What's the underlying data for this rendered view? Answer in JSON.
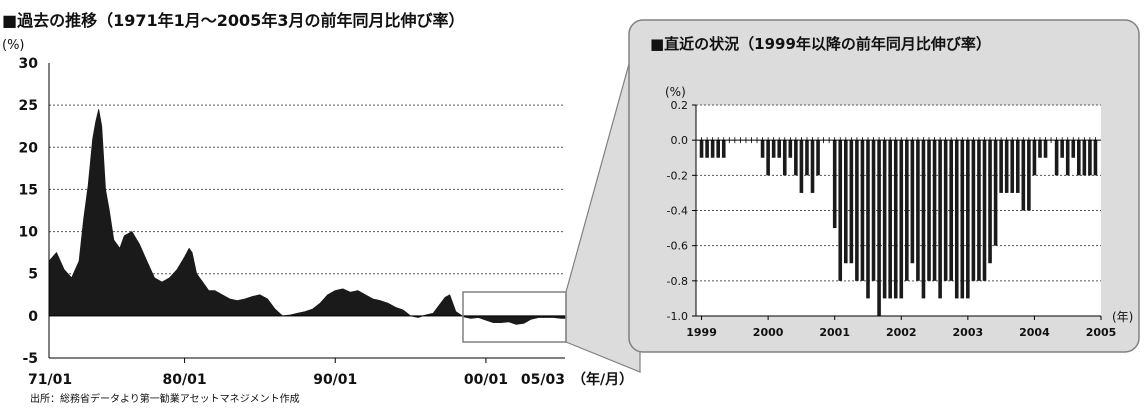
{
  "left_chart": {
    "title": "■過去の推移（1971年1月～2005年3月の前年同月比伸び率）",
    "unit": "(%)",
    "x_unit": "（年/月）",
    "source": "出所：総務省データより第一勧業アセットマネジメント作成"
  },
  "right_chart": {
    "title": "■直近の状況（1999年以降の前年同月比伸び率）",
    "unit": "(%)",
    "x_unit": "(年)"
  },
  "colors": {
    "bars": "#1a1a1a",
    "panel_fill": "#dcdcdc",
    "panel_border": "#808080",
    "axis": "#000000",
    "grid": "#555555"
  },
  "chart_data": [
    {
      "type": "area",
      "title": "過去の推移（1971年1月～2005年3月の前年同月比伸び率）",
      "ylabel": "(%)",
      "xlabel": "（年/月）",
      "ylim": [
        -5,
        30
      ],
      "yticks": [
        -5,
        0,
        5,
        10,
        15,
        20,
        25,
        30
      ],
      "xtick_labels": [
        "71/01",
        "80/01",
        "90/01",
        "00/01",
        "05/03"
      ],
      "x_range": [
        1971.0,
        2005.25
      ],
      "grid": "horizontal dotted",
      "x": [
        1971.0,
        1971.5,
        1972.0,
        1972.5,
        1973.0,
        1973.3,
        1973.6,
        1973.9,
        1974.1,
        1974.3,
        1974.5,
        1974.75,
        1975.0,
        1975.3,
        1975.7,
        1976.0,
        1976.5,
        1977.0,
        1977.5,
        1978.0,
        1978.5,
        1979.0,
        1979.5,
        1980.0,
        1980.3,
        1980.5,
        1980.8,
        1981.2,
        1981.6,
        1982.0,
        1982.5,
        1983.0,
        1983.5,
        1984.0,
        1984.5,
        1985.0,
        1985.5,
        1986.0,
        1986.5,
        1987.0,
        1987.5,
        1988.0,
        1988.5,
        1989.0,
        1989.5,
        1990.0,
        1990.5,
        1991.0,
        1991.5,
        1992.0,
        1992.5,
        1993.0,
        1993.5,
        1994.0,
        1994.5,
        1995.0,
        1995.5,
        1996.0,
        1996.5,
        1997.0,
        1997.3,
        1997.6,
        1998.0,
        1998.5,
        1999.0,
        1999.5,
        2000.0,
        2000.5,
        2001.0,
        2001.5,
        2002.0,
        2002.5,
        2003.0,
        2003.5,
        2004.0,
        2004.5,
        2005.0,
        2005.25
      ],
      "values": [
        6.5,
        7.5,
        5.5,
        4.5,
        6.5,
        11.5,
        15.5,
        21.0,
        23.0,
        24.5,
        22.5,
        15.0,
        12.5,
        9.0,
        8.0,
        9.5,
        10.0,
        8.5,
        6.5,
        4.5,
        4.0,
        4.5,
        5.5,
        7.0,
        8.0,
        7.5,
        5.0,
        4.0,
        3.0,
        3.0,
        2.5,
        2.0,
        1.8,
        2.0,
        2.3,
        2.5,
        2.0,
        0.8,
        0.0,
        0.1,
        0.3,
        0.5,
        0.8,
        1.5,
        2.5,
        3.0,
        3.2,
        2.8,
        3.0,
        2.5,
        2.0,
        1.8,
        1.5,
        1.0,
        0.7,
        0.0,
        -0.2,
        0.1,
        0.3,
        1.5,
        2.2,
        2.5,
        0.5,
        -0.1,
        -0.3,
        -0.2,
        -0.5,
        -0.8,
        -0.8,
        -0.7,
        -1.0,
        -0.9,
        -0.4,
        -0.2,
        -0.2,
        -0.2,
        -0.3,
        -0.3
      ]
    },
    {
      "type": "bar",
      "title": "直近の状況（1999年以降の前年同月比伸び率）",
      "ylabel": "(%)",
      "xlabel": "(年)",
      "ylim": [
        -1.0,
        0.2
      ],
      "yticks": [
        -1.0,
        -0.8,
        -0.6,
        -0.4,
        -0.2,
        0.0,
        0.2
      ],
      "xtick_labels": [
        "1999",
        "2000",
        "2001",
        "2002",
        "2003",
        "2004",
        "2005"
      ],
      "start": "1999-01",
      "grid": "horizontal dotted",
      "values": [
        -0.1,
        -0.1,
        -0.1,
        -0.1,
        -0.1,
        0.0,
        0.0,
        0.0,
        0.0,
        0.0,
        0.0,
        -0.1,
        -0.2,
        -0.1,
        -0.1,
        -0.2,
        -0.1,
        -0.2,
        -0.3,
        -0.2,
        -0.3,
        -0.2,
        0.0,
        0.0,
        -0.5,
        -0.8,
        -0.7,
        -0.7,
        -0.8,
        -0.8,
        -0.9,
        -0.8,
        -1.0,
        -0.9,
        -0.9,
        -0.9,
        -0.9,
        -0.8,
        -0.7,
        -0.8,
        -0.9,
        -0.8,
        -0.8,
        -0.9,
        -0.8,
        -0.8,
        -0.9,
        -0.9,
        -0.9,
        -0.8,
        -0.8,
        -0.8,
        -0.7,
        -0.6,
        -0.3,
        -0.3,
        -0.3,
        -0.3,
        -0.4,
        -0.4,
        -0.2,
        -0.1,
        -0.1,
        0.0,
        -0.2,
        -0.1,
        -0.2,
        -0.1,
        -0.2,
        -0.2,
        -0.2,
        -0.2
      ]
    }
  ]
}
